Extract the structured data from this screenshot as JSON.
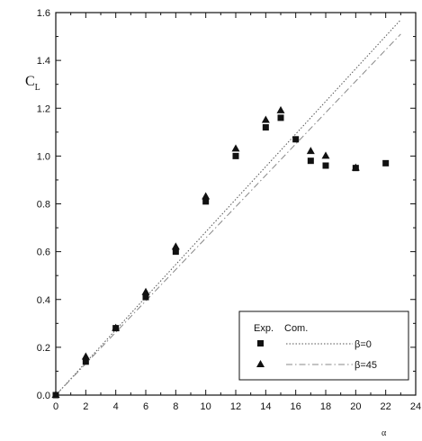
{
  "chart_data": {
    "type": "scatter",
    "xlabel": "α",
    "ylabel": "C",
    "ylabel_sub": "L",
    "xlim": [
      0,
      24
    ],
    "ylim": [
      0,
      1.6
    ],
    "x_ticks": [
      0,
      2,
      4,
      6,
      8,
      10,
      12,
      14,
      16,
      18,
      20,
      22,
      24
    ],
    "x_tick_labels": [
      "0",
      "2",
      "4",
      "6",
      "8",
      "10",
      "12",
      "14",
      "16",
      "18",
      "20",
      "22",
      "24"
    ],
    "y_ticks": [
      0,
      0.2,
      0.4,
      0.6,
      0.8,
      1.0,
      1.2,
      1.4,
      1.6
    ],
    "y_tick_labels": [
      "0.0",
      "0.2",
      "0.4",
      "0.6",
      "0.8",
      "1.0",
      "1.2",
      "1.4",
      "1.6"
    ],
    "grid": false,
    "legend": {
      "placement": "bottom-right",
      "header_exp": "Exp.",
      "header_com": "Com.",
      "entries": [
        "β=0",
        "β=45"
      ]
    },
    "series": [
      {
        "name": "β=0",
        "kind": "exp",
        "marker": "square",
        "x": [
          0,
          2,
          4,
          6,
          8,
          10,
          12,
          14,
          15,
          16,
          17,
          18,
          20,
          22
        ],
        "y": [
          0.0,
          0.14,
          0.28,
          0.41,
          0.6,
          0.81,
          1.0,
          1.12,
          1.16,
          1.07,
          0.98,
          0.96,
          0.95,
          0.97
        ]
      },
      {
        "name": "β=45",
        "kind": "exp",
        "marker": "triangle",
        "x": [
          0,
          2,
          4,
          6,
          8,
          10,
          12,
          14,
          15,
          17,
          18,
          20
        ],
        "y": [
          0.0,
          0.16,
          0.28,
          0.43,
          0.62,
          0.83,
          1.03,
          1.15,
          1.19,
          1.02,
          1.0,
          0.95
        ]
      },
      {
        "name": "β=0",
        "kind": "com",
        "line": "dotted",
        "x": [
          0,
          23
        ],
        "y": [
          0.0,
          1.57
        ]
      },
      {
        "name": "β=45",
        "kind": "com",
        "line": "dash-dot",
        "x": [
          0,
          23
        ],
        "y": [
          0.0,
          1.51
        ]
      }
    ]
  }
}
